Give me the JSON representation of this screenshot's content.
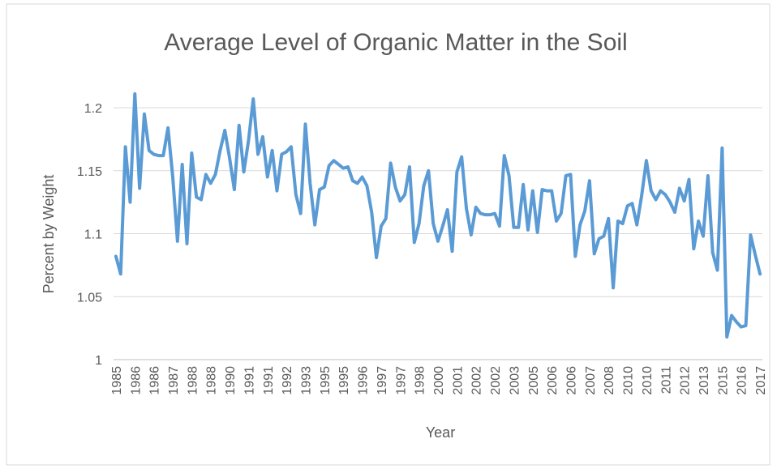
{
  "chart_data": {
    "type": "line",
    "title": "Average Level of Organic Matter in the Soil",
    "y_label": "Percent by Weight",
    "x_label": "Year",
    "categories": [
      "1985",
      null,
      null,
      null,
      "1986",
      null,
      null,
      null,
      "1986",
      null,
      null,
      null,
      "1987",
      null,
      null,
      null,
      "1988",
      null,
      null,
      null,
      "1988",
      null,
      null,
      null,
      "1990",
      null,
      null,
      null,
      "1991",
      null,
      null,
      null,
      "1991",
      null,
      null,
      null,
      "1992",
      null,
      null,
      null,
      "1993",
      null,
      null,
      null,
      "1995",
      null,
      null,
      null,
      "1995",
      null,
      null,
      null,
      "1996",
      null,
      null,
      null,
      "1997",
      null,
      null,
      null,
      "1997",
      null,
      null,
      null,
      "1998",
      null,
      null,
      null,
      "2000",
      null,
      null,
      null,
      "2001",
      null,
      null,
      null,
      "2002",
      null,
      null,
      null,
      "2002",
      null,
      null,
      null,
      "2003",
      null,
      null,
      null,
      "2005",
      null,
      null,
      null,
      "2006",
      null,
      null,
      null,
      "2006",
      null,
      null,
      null,
      "2007",
      null,
      null,
      null,
      "2008",
      null,
      null,
      null,
      "2010",
      null,
      null,
      null,
      "2010",
      null,
      null,
      null,
      "2011",
      null,
      null,
      null,
      "2012",
      null,
      null,
      null,
      "2013",
      null,
      null,
      null,
      "2015",
      null,
      null,
      null,
      "2016",
      null,
      null,
      null,
      "2017"
    ],
    "series": [
      {
        "name": "Percent by Weight",
        "color": "#5b9bd5",
        "values": [
          1.082,
          1.068,
          1.169,
          1.125,
          1.211,
          1.136,
          1.195,
          1.166,
          1.163,
          1.162,
          1.162,
          1.184,
          1.145,
          1.094,
          1.155,
          1.092,
          1.164,
          1.129,
          1.127,
          1.147,
          1.14,
          1.147,
          1.166,
          1.182,
          1.16,
          1.135,
          1.186,
          1.149,
          1.174,
          1.207,
          1.163,
          1.177,
          1.145,
          1.166,
          1.134,
          1.163,
          1.165,
          1.169,
          1.131,
          1.116,
          1.187,
          1.14,
          1.107,
          1.135,
          1.137,
          1.154,
          1.158,
          1.155,
          1.152,
          1.153,
          1.142,
          1.14,
          1.145,
          1.138,
          1.117,
          1.081,
          1.106,
          1.112,
          1.156,
          1.137,
          1.126,
          1.131,
          1.153,
          1.093,
          1.108,
          1.138,
          1.15,
          1.108,
          1.094,
          1.106,
          1.119,
          1.086,
          1.149,
          1.161,
          1.12,
          1.099,
          1.121,
          1.116,
          1.115,
          1.115,
          1.116,
          1.106,
          1.162,
          1.146,
          1.105,
          1.105,
          1.139,
          1.103,
          1.134,
          1.101,
          1.135,
          1.134,
          1.134,
          1.11,
          1.116,
          1.146,
          1.147,
          1.082,
          1.107,
          1.118,
          1.142,
          1.084,
          1.096,
          1.098,
          1.112,
          1.057,
          1.11,
          1.108,
          1.122,
          1.124,
          1.107,
          1.13,
          1.158,
          1.134,
          1.127,
          1.134,
          1.131,
          1.125,
          1.117,
          1.136,
          1.126,
          1.143,
          1.088,
          1.11,
          1.098,
          1.146,
          1.085,
          1.071,
          1.168,
          1.018,
          1.035,
          1.03,
          1.026,
          1.027,
          1.099,
          1.083,
          1.068
        ]
      }
    ],
    "ylim": [
      1,
      1.2
    ],
    "yticks": [
      1,
      1.05,
      1.1,
      1.15,
      1.2
    ],
    "grid": true
  }
}
